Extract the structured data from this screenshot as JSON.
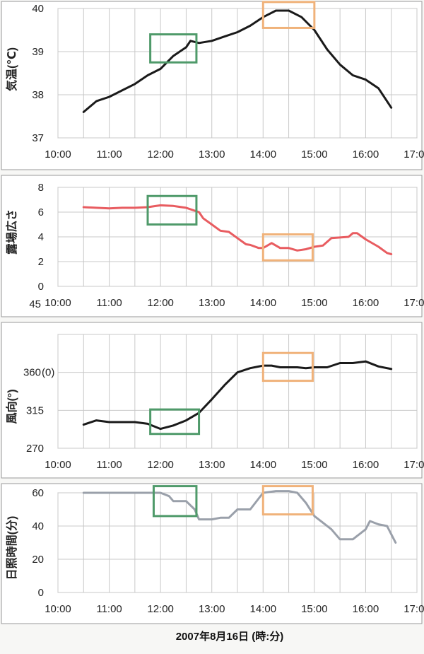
{
  "x_ticks": [
    "10:00",
    "11:00",
    "12:00",
    "13:00",
    "14:00",
    "15:00",
    "16:00",
    "17:00"
  ],
  "caption": "2007年8月16日  (時:分)",
  "colors": {
    "highlight_green": "#4f9a6a",
    "highlight_orange": "#f0b27a"
  },
  "chart_data": [
    {
      "type": "line",
      "ylabel": "気温(℃)",
      "ylim": [
        37,
        40
      ],
      "y_ticks": [
        "37",
        "38",
        "39",
        "40"
      ],
      "x_range": [
        "10:00",
        "17:00"
      ],
      "grid": true,
      "color": "#1a1a1a",
      "points": [
        [
          "10:30",
          37.6
        ],
        [
          "10:45",
          37.85
        ],
        [
          "11:00",
          37.95
        ],
        [
          "11:15",
          38.1
        ],
        [
          "11:30",
          38.25
        ],
        [
          "11:45",
          38.45
        ],
        [
          "12:00",
          38.6
        ],
        [
          "12:15",
          38.9
        ],
        [
          "12:30",
          39.1
        ],
        [
          "12:35",
          39.25
        ],
        [
          "12:45",
          39.2
        ],
        [
          "13:00",
          39.25
        ],
        [
          "13:15",
          39.35
        ],
        [
          "13:30",
          39.45
        ],
        [
          "13:45",
          39.6
        ],
        [
          "14:00",
          39.8
        ],
        [
          "14:15",
          39.95
        ],
        [
          "14:30",
          39.95
        ],
        [
          "14:45",
          39.8
        ],
        [
          "15:00",
          39.5
        ],
        [
          "15:15",
          39.05
        ],
        [
          "15:30",
          38.7
        ],
        [
          "15:45",
          38.45
        ],
        [
          "16:00",
          38.35
        ],
        [
          "16:15",
          38.15
        ],
        [
          "16:30",
          37.7
        ]
      ],
      "highlights": [
        {
          "x": [
            "11:48",
            "12:42"
          ],
          "y": [
            38.75,
            39.4
          ],
          "color": "green"
        },
        {
          "x": [
            "14:00",
            "15:00"
          ],
          "y": [
            39.55,
            40.15
          ],
          "color": "orange"
        }
      ]
    },
    {
      "type": "line",
      "ylabel": "露場広さ",
      "ylim": [
        0,
        8
      ],
      "y_ticks": [
        "0",
        "2",
        "4",
        "6",
        "8"
      ],
      "x_range": [
        "10:00",
        "17:00"
      ],
      "grid": true,
      "color": "#e85c60",
      "points": [
        [
          "10:30",
          6.4
        ],
        [
          "10:45",
          6.35
        ],
        [
          "11:00",
          6.3
        ],
        [
          "11:15",
          6.35
        ],
        [
          "11:30",
          6.35
        ],
        [
          "11:45",
          6.4
        ],
        [
          "12:00",
          6.55
        ],
        [
          "12:15",
          6.5
        ],
        [
          "12:30",
          6.35
        ],
        [
          "12:45",
          6.0
        ],
        [
          "12:50",
          5.5
        ],
        [
          "13:00",
          5.0
        ],
        [
          "13:10",
          4.5
        ],
        [
          "13:20",
          4.4
        ],
        [
          "13:30",
          3.9
        ],
        [
          "13:40",
          3.4
        ],
        [
          "13:45",
          3.35
        ],
        [
          "13:55",
          3.1
        ],
        [
          "14:00",
          3.1
        ],
        [
          "14:10",
          3.5
        ],
        [
          "14:20",
          3.1
        ],
        [
          "14:30",
          3.1
        ],
        [
          "14:40",
          2.9
        ],
        [
          "14:50",
          3.0
        ],
        [
          "15:00",
          3.2
        ],
        [
          "15:10",
          3.3
        ],
        [
          "15:20",
          3.9
        ],
        [
          "15:30",
          3.95
        ],
        [
          "15:40",
          4.0
        ],
        [
          "15:45",
          4.3
        ],
        [
          "15:50",
          4.3
        ],
        [
          "16:00",
          3.8
        ],
        [
          "16:15",
          3.2
        ],
        [
          "16:25",
          2.7
        ],
        [
          "16:30",
          2.6
        ]
      ],
      "highlights": [
        {
          "x": [
            "11:45",
            "12:42"
          ],
          "y": [
            5.0,
            7.3
          ],
          "color": "green"
        },
        {
          "x": [
            "14:00",
            "14:58"
          ],
          "y": [
            2.1,
            4.2
          ],
          "color": "orange"
        }
      ]
    },
    {
      "type": "line",
      "ylabel": "風向(°)",
      "ylim": [
        270,
        405
      ],
      "y_ticks": [
        "270",
        "315",
        "360",
        "45"
      ],
      "y_tick_annotation": "(0)",
      "x_range": [
        "10:00",
        "17:00"
      ],
      "grid": true,
      "color": "#1a1a1a",
      "points": [
        [
          "10:30",
          298
        ],
        [
          "10:45",
          303
        ],
        [
          "11:00",
          301
        ],
        [
          "11:30",
          301
        ],
        [
          "11:45",
          299
        ],
        [
          "12:00",
          293
        ],
        [
          "12:15",
          297
        ],
        [
          "12:30",
          303
        ],
        [
          "12:45",
          312
        ],
        [
          "13:00",
          328
        ],
        [
          "13:15",
          345
        ],
        [
          "13:30",
          360
        ],
        [
          "13:45",
          365
        ],
        [
          "14:00",
          368
        ],
        [
          "14:10",
          368
        ],
        [
          "14:20",
          366
        ],
        [
          "14:40",
          366
        ],
        [
          "14:50",
          365
        ],
        [
          "15:00",
          366
        ],
        [
          "15:15",
          366
        ],
        [
          "15:30",
          371
        ],
        [
          "15:45",
          371
        ],
        [
          "16:00",
          373
        ],
        [
          "16:15",
          367
        ],
        [
          "16:30",
          364
        ]
      ],
      "highlights": [
        {
          "x": [
            "11:48",
            "12:45"
          ],
          "y": [
            287,
            316
          ],
          "color": "green"
        },
        {
          "x": [
            "14:00",
            "14:58"
          ],
          "y": [
            350,
            383
          ],
          "color": "orange"
        }
      ]
    },
    {
      "type": "line",
      "ylabel": "日照時間(分)",
      "ylim": [
        0,
        60
      ],
      "y_ticks": [
        "0",
        "20",
        "40",
        "60"
      ],
      "x_range": [
        "10:00",
        "17:00"
      ],
      "grid": true,
      "color": "#9aa0aa",
      "points": [
        [
          "10:30",
          60
        ],
        [
          "11:00",
          60
        ],
        [
          "11:30",
          60
        ],
        [
          "12:00",
          60
        ],
        [
          "12:10",
          58
        ],
        [
          "12:15",
          55
        ],
        [
          "12:30",
          55
        ],
        [
          "12:40",
          50
        ],
        [
          "12:45",
          44
        ],
        [
          "13:00",
          44
        ],
        [
          "13:10",
          45
        ],
        [
          "13:20",
          45
        ],
        [
          "13:30",
          50
        ],
        [
          "13:45",
          50
        ],
        [
          "14:00",
          60
        ],
        [
          "14:15",
          61
        ],
        [
          "14:30",
          61
        ],
        [
          "14:40",
          60
        ],
        [
          "14:50",
          54
        ],
        [
          "15:00",
          46
        ],
        [
          "15:10",
          42
        ],
        [
          "15:20",
          38
        ],
        [
          "15:30",
          32
        ],
        [
          "15:45",
          32
        ],
        [
          "15:50",
          34
        ],
        [
          "16:00",
          38
        ],
        [
          "16:05",
          43
        ],
        [
          "16:15",
          41
        ],
        [
          "16:25",
          40
        ],
        [
          "16:35",
          30
        ]
      ],
      "highlights": [
        {
          "x": [
            "11:52",
            "12:42"
          ],
          "y": [
            46,
            64
          ],
          "color": "green"
        },
        {
          "x": [
            "14:00",
            "14:58"
          ],
          "y": [
            47,
            64
          ],
          "color": "orange"
        }
      ]
    }
  ]
}
